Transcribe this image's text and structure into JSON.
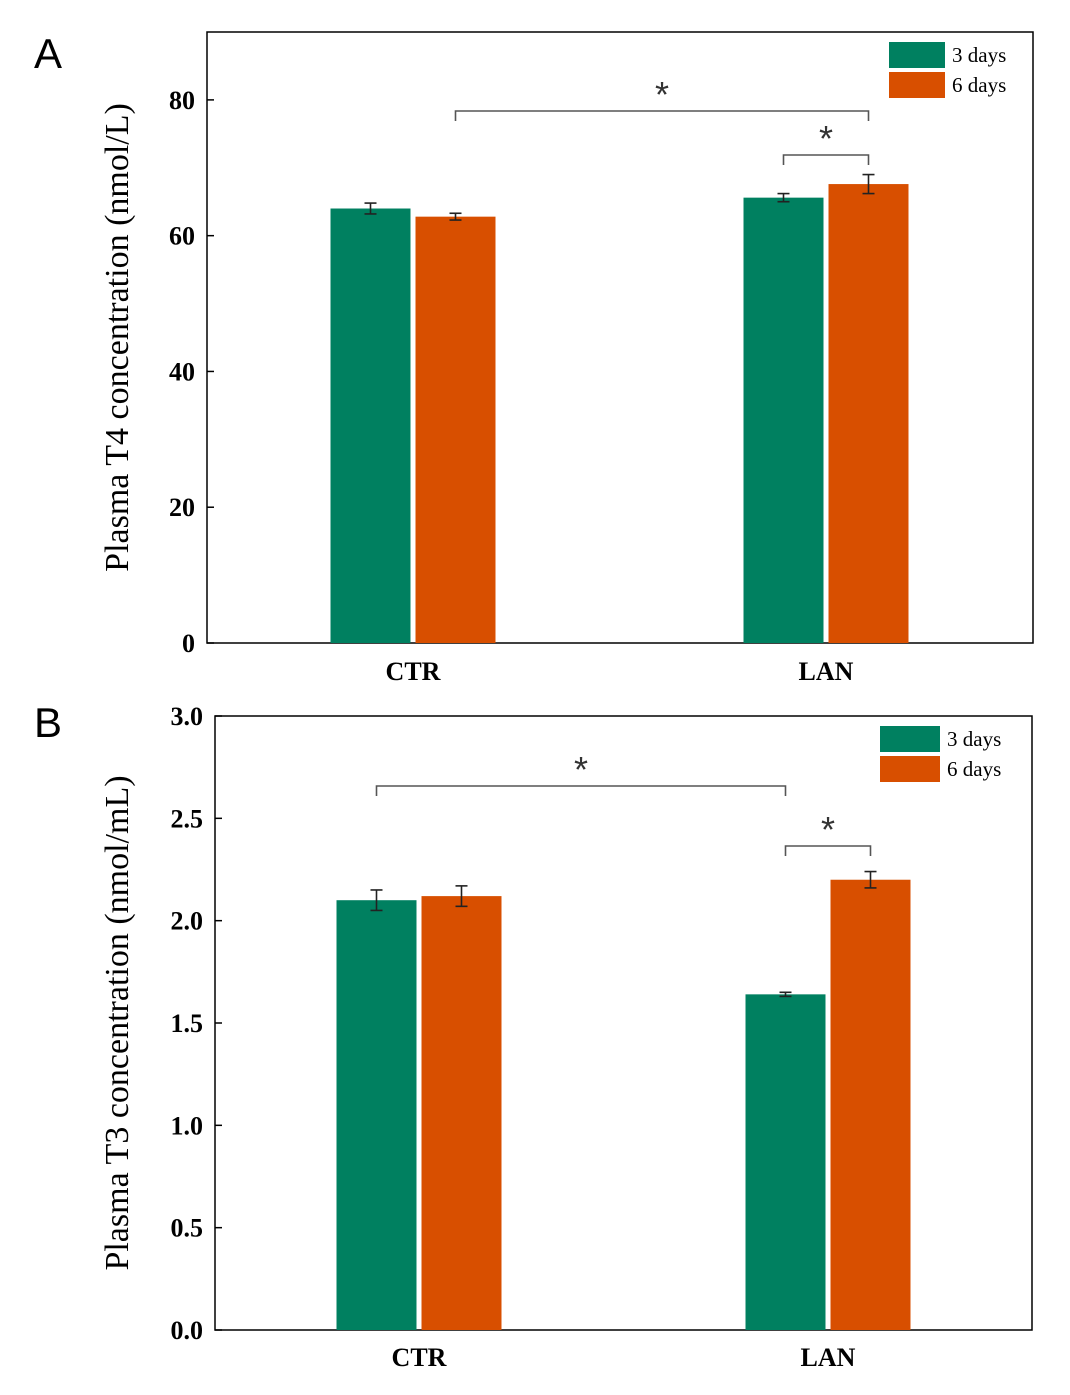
{
  "colors": {
    "3_days": "#008060",
    "6_days": "#d84f00",
    "axis": "#000000",
    "bracket": "#555555"
  },
  "chart_data": [
    {
      "panel": "A",
      "type": "bar",
      "ylabel": "Plasma T4 concentration (nmol/L)",
      "categories": [
        "CTR",
        "LAN"
      ],
      "ylim": [
        0,
        90
      ],
      "yticks": [
        "0",
        "20",
        "40",
        "60",
        "80"
      ],
      "ytick_values": [
        0,
        20,
        40,
        60,
        80
      ],
      "legend": "top-right",
      "series": [
        {
          "name": "3 days",
          "values": [
            64.0,
            65.6
          ],
          "errors": [
            0.8,
            0.6
          ]
        },
        {
          "name": "6 days",
          "values": [
            62.8,
            67.6
          ],
          "errors": [
            0.5,
            1.4
          ]
        }
      ],
      "significance": [
        {
          "label": "*",
          "from": [
            0,
            1
          ],
          "to": [
            1,
            1
          ]
        },
        {
          "label": "*",
          "from": [
            1,
            0
          ],
          "to": [
            1,
            1
          ]
        }
      ]
    },
    {
      "panel": "B",
      "type": "bar",
      "ylabel": "Plasma T3 concentration (nmol/mL)",
      "categories": [
        "CTR",
        "LAN"
      ],
      "ylim": [
        0,
        3.0
      ],
      "yticks": [
        "0.0",
        "0.5",
        "1.0",
        "1.5",
        "2.0",
        "2.5",
        "3.0"
      ],
      "ytick_values": [
        0,
        0.5,
        1.0,
        1.5,
        2.0,
        2.5,
        3.0
      ],
      "legend": "top-right",
      "series": [
        {
          "name": "3 days",
          "values": [
            2.1,
            1.64
          ],
          "errors": [
            0.05,
            0.01
          ]
        },
        {
          "name": "6 days",
          "values": [
            2.12,
            2.2
          ],
          "errors": [
            0.05,
            0.04
          ]
        }
      ],
      "significance": [
        {
          "label": "*",
          "from": [
            0,
            0
          ],
          "to": [
            1,
            0
          ]
        },
        {
          "label": "*",
          "from": [
            1,
            0
          ],
          "to": [
            1,
            1
          ]
        }
      ]
    }
  ]
}
